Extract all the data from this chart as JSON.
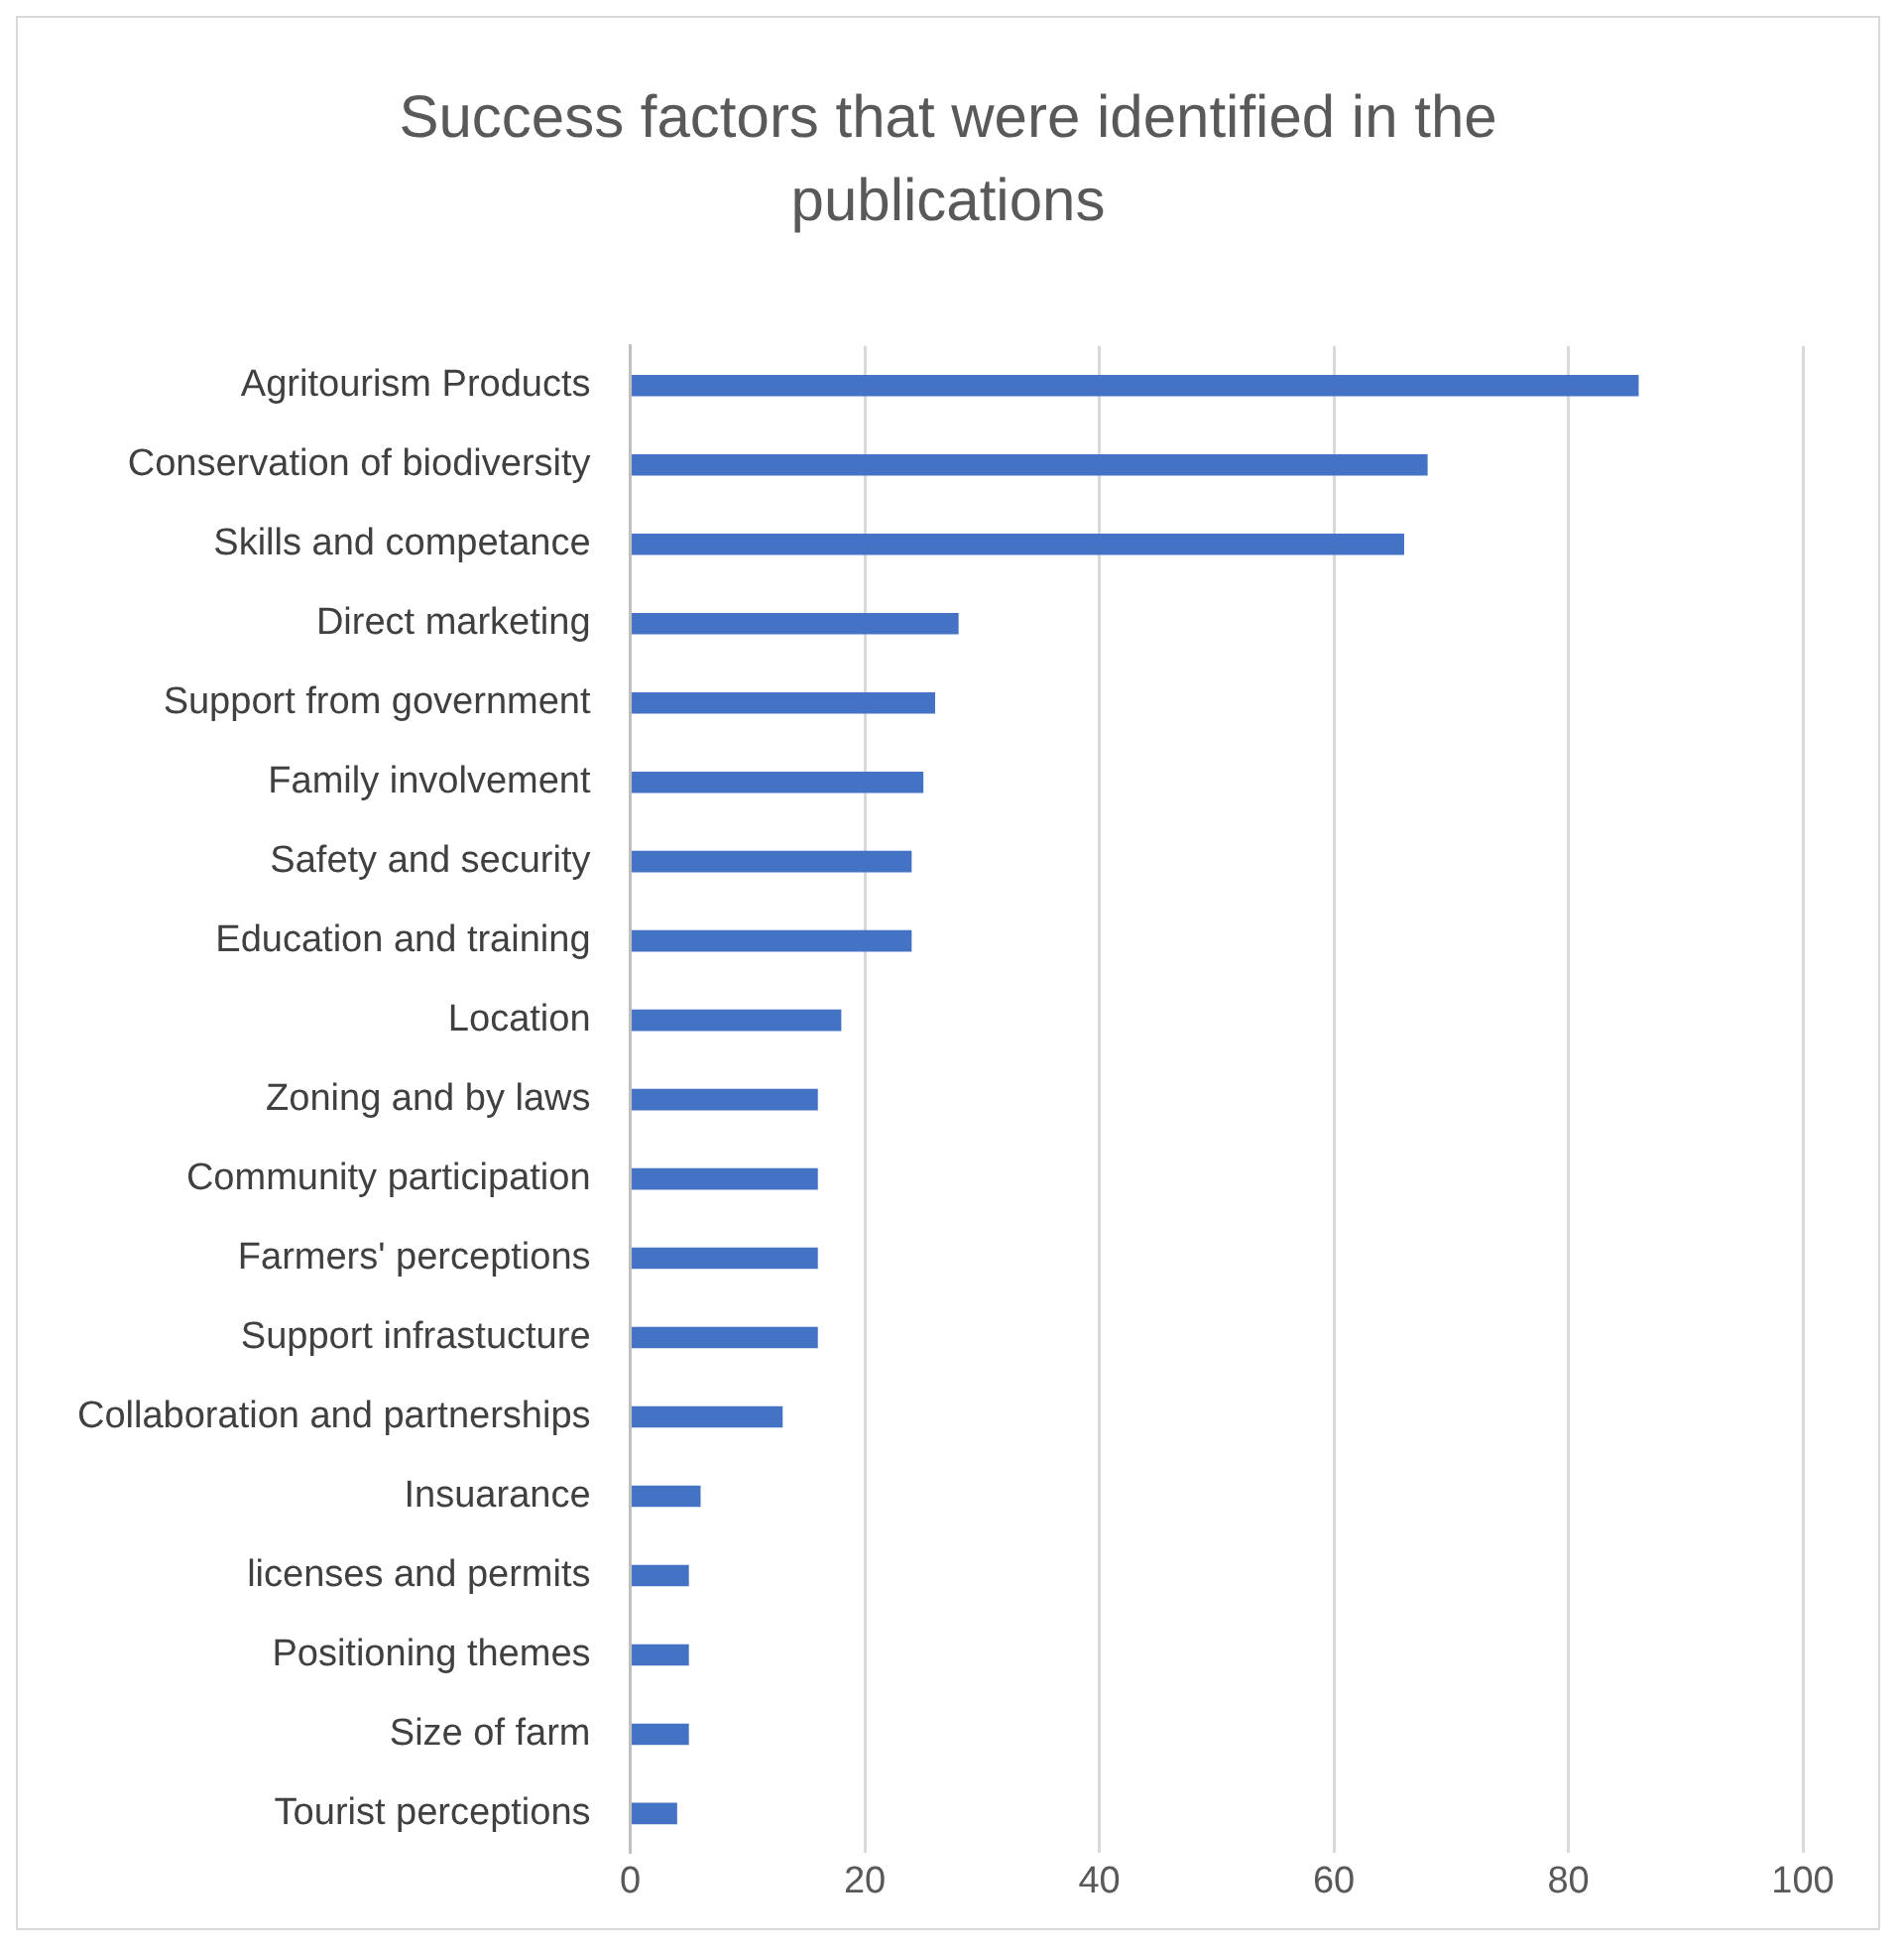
{
  "chart_data": {
    "type": "bar",
    "orientation": "horizontal",
    "title": "Success factors that were identified in the publications",
    "categories": [
      "Agritourism Products",
      "Conservation of biodiversity",
      "Skills and competance",
      "Direct marketing",
      "Support from government",
      "Family involvement",
      "Safety and security",
      "Education and training",
      "Location",
      "Zoning and by laws",
      "Community participation",
      "Farmers' perceptions",
      "Support infrastucture",
      "Collaboration and partnerships",
      "Insuarance",
      "licenses and permits",
      "Positioning themes",
      "Size of farm",
      "Tourist perceptions"
    ],
    "values": [
      86,
      68,
      66,
      28,
      26,
      25,
      24,
      24,
      18,
      16,
      16,
      16,
      16,
      13,
      6,
      5,
      5,
      5,
      4
    ],
    "color": "#4472c4",
    "xlim": [
      0,
      100
    ],
    "xticks": [
      0,
      20,
      40,
      60,
      80,
      100
    ],
    "grid": "x",
    "legend": false
  }
}
